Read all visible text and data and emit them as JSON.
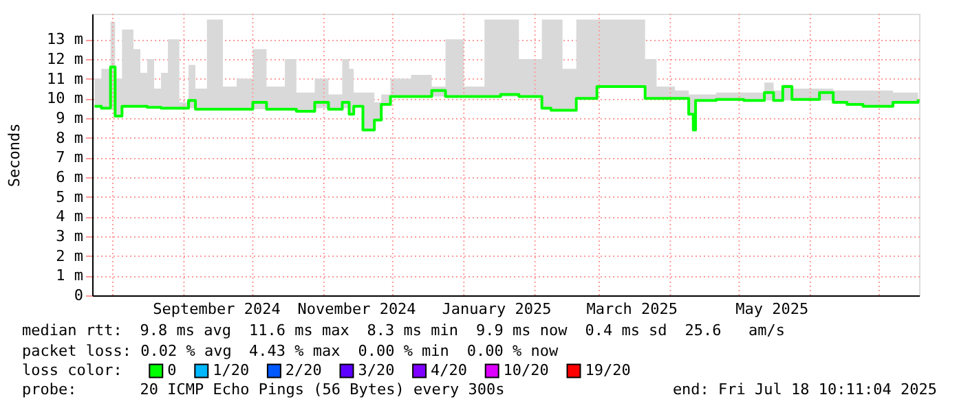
{
  "chart_data": {
    "type": "step",
    "ylabel": "Seconds",
    "legend_title": "loss color:",
    "legend": "bottom",
    "grid": true,
    "xlim": [
      "2024-07-23",
      "2025-07-18T10:11"
    ],
    "ylim": [
      0,
      14.3
    ],
    "xticks": [
      {
        "value": "2024-08-01",
        "label": null
      },
      {
        "value": "2024-09-01",
        "label": null
      },
      {
        "value": "2024-09-15",
        "label": "September 2024"
      },
      {
        "value": "2024-10-01",
        "label": null
      },
      {
        "value": "2024-11-01",
        "label": null
      },
      {
        "value": "2024-11-15",
        "label": "November 2024"
      },
      {
        "value": "2024-12-01",
        "label": null
      },
      {
        "value": "2025-01-01",
        "label": null
      },
      {
        "value": "2025-01-15",
        "label": "January 2025"
      },
      {
        "value": "2025-02-01",
        "label": null
      },
      {
        "value": "2025-03-01",
        "label": null
      },
      {
        "value": "2025-03-15",
        "label": "March 2025"
      },
      {
        "value": "2025-04-01",
        "label": null
      },
      {
        "value": "2025-05-01",
        "label": null
      },
      {
        "value": "2025-05-15",
        "label": "May 2025"
      },
      {
        "value": "2025-06-01",
        "label": null
      },
      {
        "value": "2025-07-01",
        "label": null
      }
    ],
    "yticks": [
      0,
      {
        "value": 1,
        "label": "1 m"
      },
      {
        "value": 2,
        "label": "2 m"
      },
      {
        "value": 3,
        "label": "3 m"
      },
      {
        "value": 4,
        "label": "4 m"
      },
      {
        "value": 5,
        "label": "5 m"
      },
      {
        "value": 6,
        "label": "6 m"
      },
      {
        "value": 7,
        "label": "7 m"
      },
      {
        "value": 8,
        "label": "8 m"
      },
      {
        "value": 9,
        "label": "9 m"
      },
      {
        "value": 10,
        "label": "10 m"
      },
      {
        "value": 11,
        "label": "11 m"
      },
      {
        "value": 12,
        "label": "12 m"
      },
      {
        "value": 13,
        "label": "13 m"
      }
    ],
    "x": [
      "2024-07-24",
      "2024-07-27",
      "2024-07-31",
      "2024-08-02",
      "2024-08-05",
      "2024-08-10",
      "2024-08-13",
      "2024-08-16",
      "2024-08-19",
      "2024-08-22",
      "2024-08-25",
      "2024-08-30",
      "2024-09-03",
      "2024-09-06",
      "2024-09-11",
      "2024-09-18",
      "2024-09-24",
      "2024-10-01",
      "2024-10-07",
      "2024-10-15",
      "2024-10-20",
      "2024-10-28",
      "2024-11-03",
      "2024-11-09",
      "2024-11-12",
      "2024-11-14",
      "2024-11-18",
      "2024-11-23",
      "2024-11-26",
      "2024-11-30",
      "2024-12-09",
      "2024-12-18",
      "2024-12-24",
      "2025-01-01",
      "2025-01-10",
      "2025-01-17",
      "2025-01-25",
      "2025-02-04",
      "2025-02-08",
      "2025-02-13",
      "2025-02-19",
      "2025-02-28",
      "2025-03-10",
      "2025-03-21",
      "2025-03-26",
      "2025-04-03",
      "2025-04-09",
      "2025-04-11",
      "2025-04-12",
      "2025-04-21",
      "2025-05-03",
      "2025-05-12",
      "2025-05-16",
      "2025-05-20",
      "2025-05-24",
      "2025-06-05",
      "2025-06-11",
      "2025-06-17",
      "2025-06-24",
      "2025-07-07",
      "2025-07-18"
    ],
    "series": [
      {
        "name": "0",
        "color": "#00ff00",
        "values": [
          9.6,
          9.5,
          11.6,
          9.1,
          9.6,
          9.6,
          9.6,
          9.55,
          9.55,
          9.5,
          9.5,
          9.5,
          9.9,
          9.45,
          9.45,
          9.45,
          9.45,
          9.8,
          9.45,
          9.45,
          9.35,
          9.8,
          9.45,
          9.8,
          9.2,
          9.6,
          8.4,
          8.9,
          9.7,
          10.1,
          10.1,
          10.4,
          10.1,
          10.1,
          10.1,
          10.2,
          10.1,
          9.5,
          9.4,
          9.4,
          10,
          10.6,
          10.6,
          10,
          10,
          10,
          9.2,
          8.4,
          9.9,
          9.95,
          9.9,
          10.3,
          9.9,
          10.6,
          9.95,
          10.3,
          9.8,
          9.7,
          9.6,
          9.8,
          9.95
        ],
        "lower": [
          9.6,
          9.5,
          9.5,
          9.1,
          9.6,
          9.6,
          9.6,
          9.55,
          9.55,
          9.5,
          9.5,
          9.5,
          9.5,
          9.45,
          9.45,
          9.45,
          9.45,
          9.45,
          9.45,
          9.45,
          9.35,
          9.5,
          9.45,
          9.5,
          9.2,
          9.6,
          8.4,
          8.9,
          9.7,
          10.1,
          10.1,
          10.1,
          10.1,
          10.1,
          10.1,
          10.1,
          10.1,
          9.5,
          9.4,
          9.4,
          10,
          10.6,
          10.6,
          10,
          10,
          10,
          9.2,
          8.4,
          9.9,
          9.95,
          9.9,
          9.9,
          9.9,
          9.9,
          9.95,
          9.9,
          9.8,
          9.7,
          9.6,
          9.8,
          9.95
        ],
        "upper": [
          11,
          11.5,
          13.9,
          11,
          13.5,
          12.5,
          11.3,
          12,
          10.5,
          11.3,
          13,
          9.8,
          11.7,
          10.5,
          14,
          10.6,
          11,
          12.5,
          10.6,
          12,
          10.3,
          11,
          10.2,
          12,
          11.5,
          10.3,
          10.3,
          9.8,
          10.2,
          11,
          11.2,
          10.6,
          13,
          10.6,
          14,
          14,
          12,
          14,
          14,
          11.5,
          14,
          14,
          14,
          12,
          10.6,
          10.4,
          10.2,
          10.2,
          10.2,
          10.3,
          10.3,
          10.8,
          10.4,
          10.7,
          10.5,
          10.5,
          10.4,
          10.4,
          10.4,
          10.3,
          10.3
        ]
      },
      {
        "name": "1/20",
        "color": "#00b8ff",
        "values": [
          null,
          null,
          null,
          null,
          null,
          null,
          null,
          null,
          null,
          null,
          null,
          null,
          null,
          null,
          null,
          null,
          null,
          null,
          null,
          null,
          null,
          null,
          null,
          null,
          null,
          null,
          null,
          null,
          null,
          null,
          null,
          null,
          null,
          null,
          null,
          null,
          null,
          null,
          null,
          null,
          null,
          null,
          null,
          null,
          null,
          null,
          null,
          null,
          null,
          null,
          null,
          null,
          null,
          null,
          null,
          null,
          null,
          null,
          null,
          null,
          null
        ]
      },
      {
        "name": "2/20",
        "color": "#0059ff",
        "values": [
          null,
          null,
          null,
          null,
          null,
          null,
          null,
          null,
          null,
          null,
          null,
          null,
          null,
          null,
          null,
          null,
          null,
          null,
          null,
          null,
          null,
          null,
          null,
          null,
          null,
          null,
          null,
          null,
          null,
          null,
          null,
          null,
          null,
          null,
          null,
          null,
          null,
          null,
          null,
          null,
          null,
          null,
          null,
          null,
          null,
          null,
          null,
          null,
          null,
          null,
          null,
          null,
          null,
          null,
          null,
          null,
          null,
          null,
          null,
          null,
          null
        ]
      },
      {
        "name": "3/20",
        "color": "#5e00ff",
        "values": [
          null,
          null,
          null,
          null,
          null,
          null,
          null,
          null,
          null,
          null,
          null,
          null,
          null,
          null,
          null,
          null,
          null,
          null,
          null,
          null,
          null,
          null,
          null,
          null,
          null,
          null,
          null,
          null,
          null,
          null,
          null,
          null,
          null,
          null,
          null,
          null,
          null,
          null,
          null,
          null,
          null,
          null,
          null,
          null,
          null,
          null,
          null,
          null,
          null,
          null,
          null,
          null,
          null,
          null,
          null,
          null,
          null,
          null,
          null,
          null,
          null
        ]
      },
      {
        "name": "4/20",
        "color": "#7e00ff",
        "values": [
          null,
          null,
          null,
          null,
          null,
          null,
          null,
          null,
          null,
          null,
          null,
          null,
          null,
          null,
          null,
          null,
          null,
          null,
          null,
          null,
          null,
          null,
          null,
          null,
          null,
          null,
          null,
          null,
          null,
          null,
          null,
          null,
          null,
          null,
          null,
          null,
          null,
          null,
          null,
          null,
          null,
          null,
          null,
          null,
          null,
          null,
          null,
          null,
          null,
          null,
          null,
          null,
          null,
          null,
          null,
          null,
          null,
          null,
          null,
          null,
          null
        ]
      },
      {
        "name": "10/20",
        "color": "#dd00ff",
        "values": [
          null,
          null,
          null,
          null,
          null,
          null,
          null,
          null,
          null,
          null,
          null,
          null,
          null,
          null,
          null,
          null,
          null,
          null,
          null,
          null,
          null,
          null,
          null,
          null,
          null,
          null,
          null,
          null,
          null,
          null,
          null,
          null,
          null,
          null,
          null,
          null,
          null,
          null,
          null,
          null,
          null,
          null,
          null,
          null,
          null,
          null,
          null,
          null,
          null,
          null,
          null,
          null,
          null,
          null,
          null,
          null,
          null,
          null,
          null,
          null,
          null
        ]
      },
      {
        "name": "19/20",
        "color": "#ff0000",
        "values": [
          null,
          null,
          null,
          null,
          null,
          null,
          null,
          null,
          null,
          null,
          null,
          null,
          null,
          null,
          null,
          null,
          null,
          null,
          null,
          null,
          null,
          null,
          null,
          null,
          null,
          null,
          null,
          null,
          null,
          null,
          null,
          null,
          null,
          null,
          null,
          null,
          null,
          null,
          null,
          null,
          null,
          null,
          null,
          null,
          null,
          null,
          null,
          null,
          null,
          null,
          null,
          null,
          null,
          null,
          null,
          null,
          null,
          null,
          null,
          null,
          null
        ]
      }
    ],
    "annotations": [
      "median rtt:  9.8 ms avg  11.6 ms max  8.3 ms min  9.9 ms now  0.4 ms sd  25.6   am/s",
      "packet loss: 0.02 % avg  4.43 % max  0.00 % min  0.00 % now",
      "probe:       20 ICMP Echo Pings (56 Bytes) every 300s",
      "end: Fri Jul 18 10:11:04 2025"
    ]
  }
}
